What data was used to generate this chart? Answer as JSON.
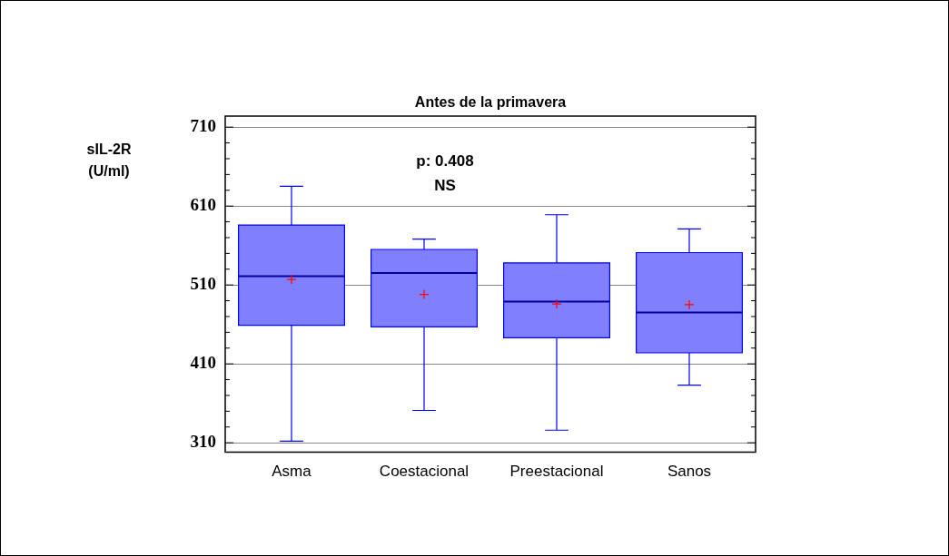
{
  "chart_data": {
    "type": "box",
    "title": "Antes de la primavera",
    "ylabel": "sIL-2R\n(U/ml)",
    "categories": [
      "Asma",
      "Coestacional",
      "Preestacional",
      "Sanos"
    ],
    "boxes": [
      {
        "low": 312,
        "q1": 459,
        "median": 521,
        "q3": 586,
        "high": 635,
        "mean": 517
      },
      {
        "low": 351,
        "q1": 457,
        "median": 525,
        "q3": 555,
        "high": 568,
        "mean": 498
      },
      {
        "low": 326,
        "q1": 443,
        "median": 489,
        "q3": 538,
        "high": 599,
        "mean": 486
      },
      {
        "low": 383,
        "q1": 424,
        "median": 475,
        "q3": 551,
        "high": 581,
        "mean": 485
      }
    ],
    "color": "#8080ff",
    "ylim": [
      298,
      724
    ],
    "yticks": [
      310,
      {
        "value": 330,
        "label": null
      },
      {
        "value": 350,
        "label": null
      },
      {
        "value": 370,
        "label": null
      },
      {
        "value": 390,
        "label": null
      },
      410,
      {
        "value": 430,
        "label": null
      },
      {
        "value": 450,
        "label": null
      },
      {
        "value": 470,
        "label": null
      },
      {
        "value": 490,
        "label": null
      },
      510,
      {
        "value": 530,
        "label": null
      },
      {
        "value": 550,
        "label": null
      },
      {
        "value": 570,
        "label": null
      },
      {
        "value": 590,
        "label": null
      },
      610,
      {
        "value": 630,
        "label": null
      },
      {
        "value": 650,
        "label": null
      },
      {
        "value": 670,
        "label": null
      },
      {
        "value": 690,
        "label": null
      },
      710
    ],
    "grid": "y",
    "annotations": [
      "p: 0.408",
      "NS"
    ]
  }
}
